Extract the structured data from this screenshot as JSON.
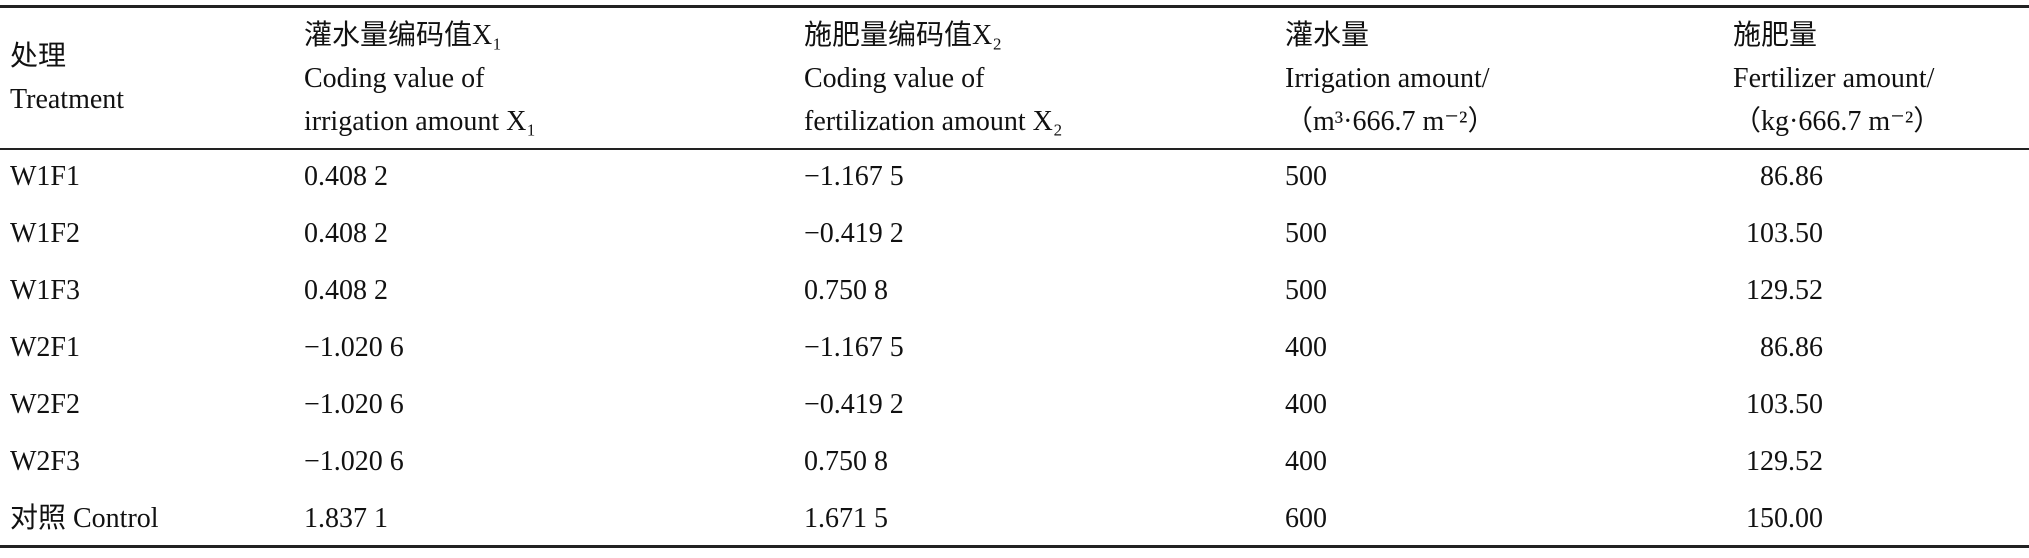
{
  "table": {
    "header": [
      [
        "处理",
        "Treatment"
      ],
      [
        "灌水量编码值X₁",
        "Coding value of",
        "irrigation amount X₁"
      ],
      [
        "施肥量编码值X₂",
        "Coding value of",
        "fertilization amount X₂"
      ],
      [
        "灌水量",
        "Irrigation amount/",
        "（m³·666.7 m⁻²）"
      ],
      [
        "施肥量",
        "Fertilizer amount/",
        "（kg·666.7 m⁻²）"
      ]
    ],
    "rows": [
      [
        "W1F1",
        "0.408 2",
        "−1.167 5",
        "500",
        "86.86"
      ],
      [
        "W1F2",
        "0.408 2",
        "−0.419 2",
        "500",
        "103.50"
      ],
      [
        "W1F3",
        "0.408 2",
        "0.750 8",
        "500",
        "129.52"
      ],
      [
        "W2F1",
        "−1.020 6",
        "−1.167 5",
        "400",
        "86.86"
      ],
      [
        "W2F2",
        "−1.020 6",
        "−0.419 2",
        "400",
        "103.50"
      ],
      [
        "W2F3",
        "−1.020 6",
        "0.750 8",
        "400",
        "129.52"
      ],
      [
        "对照 Control",
        "1.837 1",
        "1.671 5",
        "600",
        "150.00"
      ]
    ]
  }
}
